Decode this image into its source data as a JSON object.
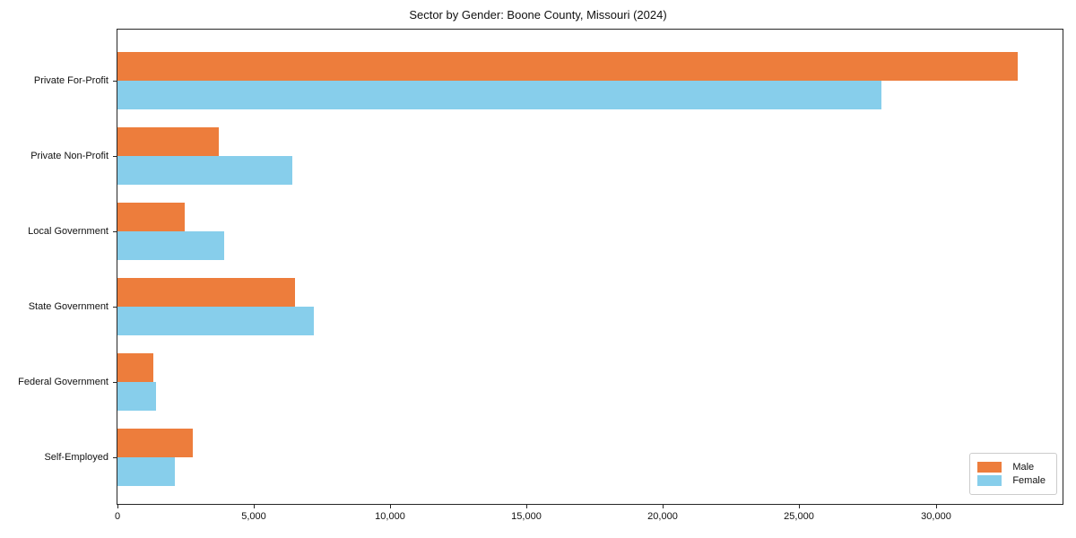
{
  "chart_data": {
    "type": "bar",
    "orientation": "horizontal",
    "title": "Sector by Gender: Boone County, Missouri (2024)",
    "categories": [
      "Private For-Profit",
      "Private Non-Profit",
      "Local Government",
      "State Government",
      "Federal Government",
      "Self-Employed"
    ],
    "series": [
      {
        "name": "Male",
        "color": "#ED7D3C",
        "values": [
          33000,
          3700,
          2450,
          6500,
          1300,
          2750
        ]
      },
      {
        "name": "Female",
        "color": "#87CEEB",
        "values": [
          28000,
          6400,
          3900,
          7200,
          1400,
          2100
        ]
      }
    ],
    "xlabel": "",
    "ylabel": "",
    "xlim": [
      0,
      34650
    ],
    "xticks": [
      0,
      5000,
      10000,
      15000,
      20000,
      25000,
      30000
    ],
    "xtick_labels": [
      "0",
      "5,000",
      "10,000",
      "15,000",
      "20,000",
      "25,000",
      "30,000"
    ],
    "grid": false,
    "legend_position": "lower right",
    "frame": true
  }
}
